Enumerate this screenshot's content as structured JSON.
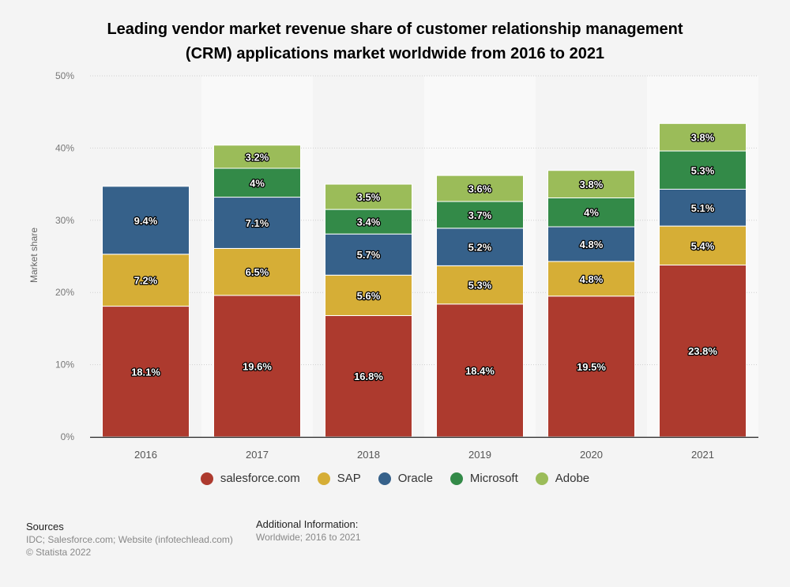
{
  "chart_data": {
    "type": "bar",
    "stacked": true,
    "title": "Leading vendor market revenue share of customer relationship management (CRM) applications market worldwide from 2016 to 2021",
    "title_lines": [
      "Leading vendor market revenue share of customer relationship management",
      "(CRM) applications market worldwide from 2016 to 2021"
    ],
    "xlabel": "",
    "ylabel": "Market share",
    "ylim": [
      0,
      50
    ],
    "yticks": [
      0,
      10,
      20,
      30,
      40,
      50
    ],
    "ytick_labels": [
      "0%",
      "10%",
      "20%",
      "30%",
      "40%",
      "50%"
    ],
    "grid": true,
    "legend_position": "bottom-center",
    "categories": [
      "2016",
      "2017",
      "2018",
      "2019",
      "2020",
      "2021"
    ],
    "series": [
      {
        "name": "salesforce.com",
        "color": "#ad3a2e",
        "values": [
          18.1,
          19.6,
          16.8,
          18.4,
          19.5,
          23.8
        ],
        "labels": [
          "18.1%",
          "19.6%",
          "16.8%",
          "18.4%",
          "19.5%",
          "23.8%"
        ]
      },
      {
        "name": "SAP",
        "color": "#d6ae36",
        "values": [
          7.2,
          6.5,
          5.6,
          5.3,
          4.8,
          5.4
        ],
        "labels": [
          "7.2%",
          "6.5%",
          "5.6%",
          "5.3%",
          "4.8%",
          "5.4%"
        ]
      },
      {
        "name": "Oracle",
        "color": "#36618a",
        "values": [
          9.4,
          7.1,
          5.7,
          5.2,
          4.8,
          5.1
        ],
        "labels": [
          "9.4%",
          "7.1%",
          "5.7%",
          "5.2%",
          "4.8%",
          "5.1%"
        ]
      },
      {
        "name": "Microsoft",
        "color": "#338a48",
        "values": [
          null,
          4.0,
          3.4,
          3.7,
          4.0,
          5.3
        ],
        "labels": [
          null,
          "4%",
          "3.4%",
          "3.7%",
          "4%",
          "5.3%"
        ]
      },
      {
        "name": "Adobe",
        "color": "#9bbc59",
        "values": [
          null,
          3.2,
          3.5,
          3.6,
          3.8,
          3.8
        ],
        "labels": [
          null,
          "3.2%",
          "3.5%",
          "3.6%",
          "3.8%",
          "3.8%"
        ]
      }
    ]
  },
  "footer": {
    "sources_heading": "Sources",
    "sources_text": "IDC; Salesforce.com; Website (infotechlead.com)",
    "copyright": "© Statista 2022",
    "additional_heading": "Additional Information:",
    "additional_text": "Worldwide; 2016 to 2021"
  }
}
